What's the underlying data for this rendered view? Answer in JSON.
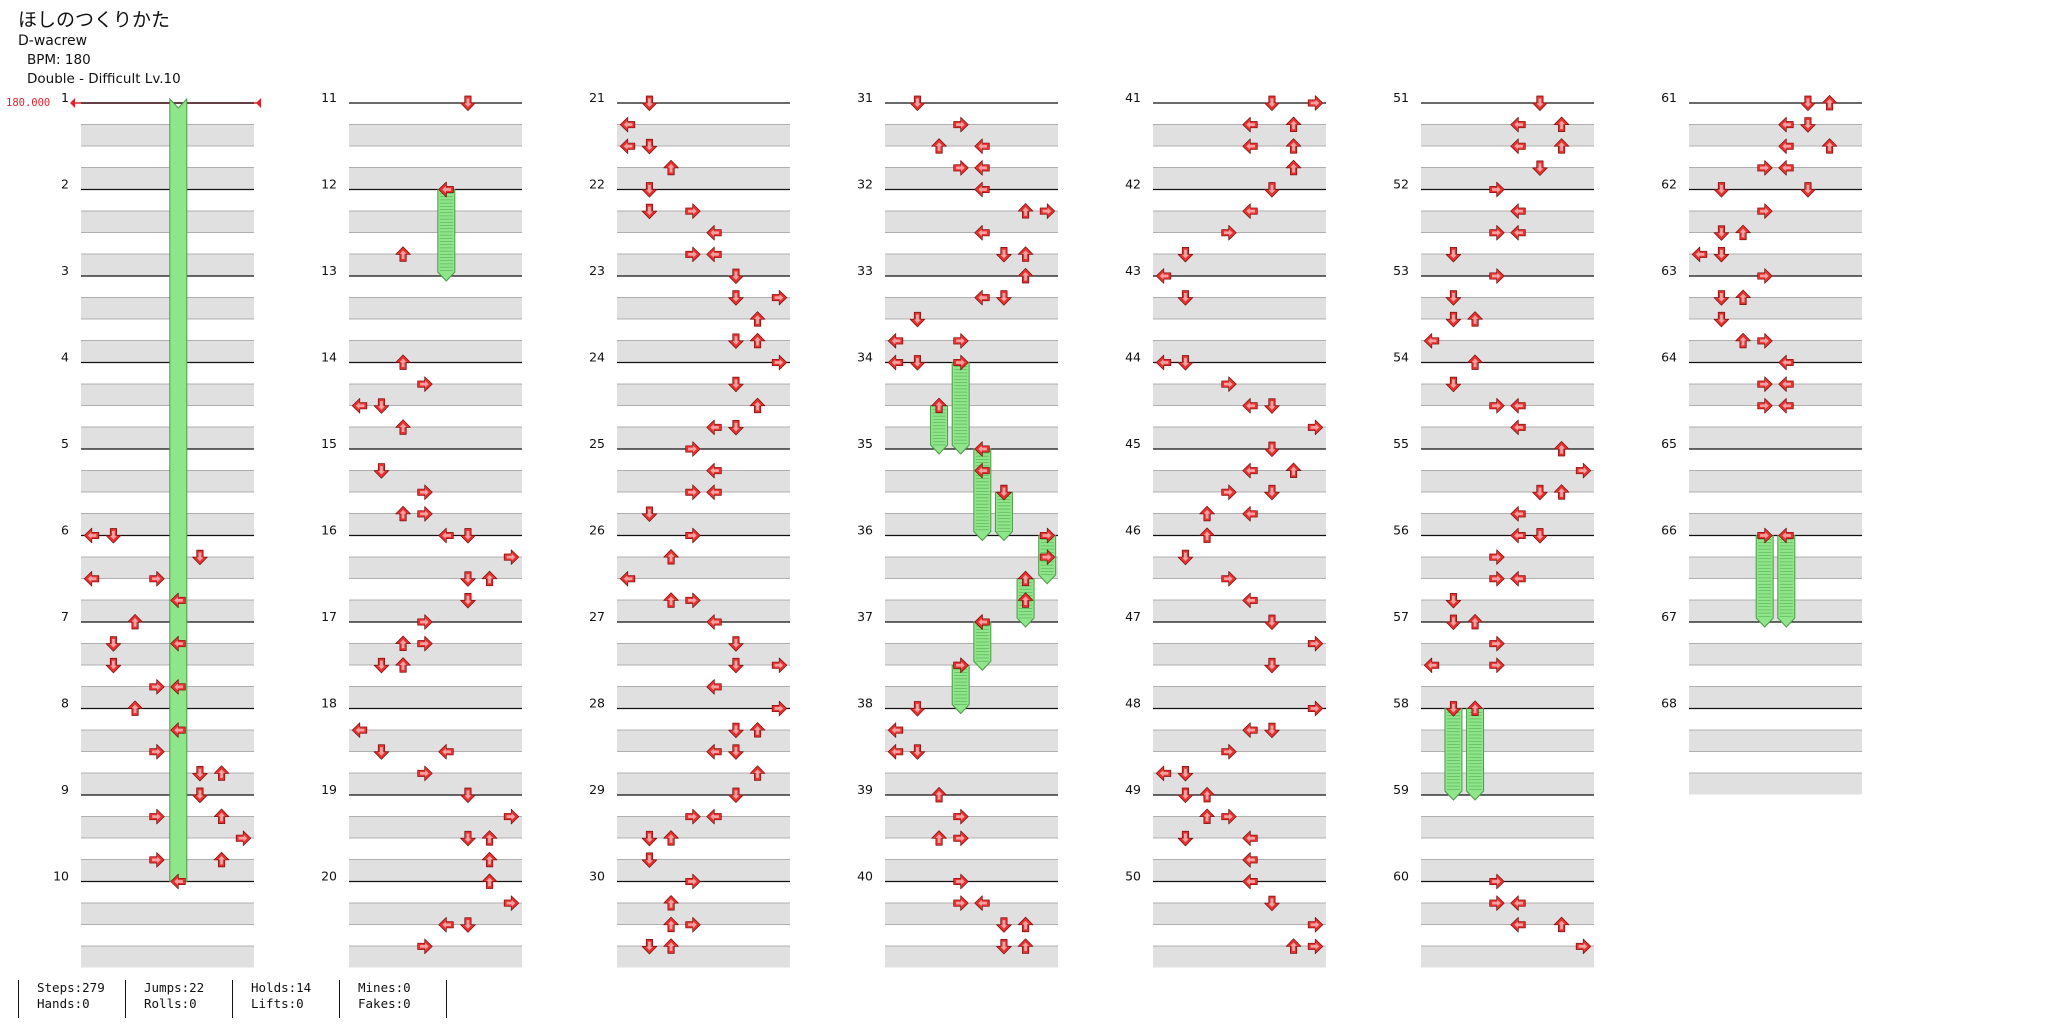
{
  "song": {
    "title": "ほしのつくりかた",
    "artist": "D-wacrew",
    "bpm_text": "BPM: 180",
    "difficulty_text": "Double - Difficult Lv.10"
  },
  "bpm_marker": {
    "value": "180.000",
    "color": "#e0242d"
  },
  "colors": {
    "quarter": "#e8302f",
    "eighth": "#2a4fe0",
    "hold": "#8fe68a",
    "row_band": "#e0e0e0"
  },
  "measures": [
    "1",
    "2",
    "3",
    "4",
    "5",
    "6",
    "7",
    "8",
    "9",
    "10",
    "11",
    "12",
    "13",
    "14",
    "15",
    "16",
    "17",
    "18",
    "19",
    "20",
    "21",
    "22",
    "23",
    "24",
    "25",
    "26",
    "27",
    "28",
    "29",
    "30",
    "31",
    "32",
    "33",
    "34",
    "35",
    "36",
    "37",
    "38",
    "39",
    "40",
    "41",
    "42",
    "43",
    "44",
    "45",
    "46",
    "47",
    "48",
    "49",
    "50",
    "51",
    "52",
    "53",
    "54",
    "55",
    "56",
    "57",
    "58",
    "59",
    "60",
    "61",
    "62",
    "63",
    "64",
    "65",
    "66",
    "67",
    "68"
  ],
  "notes": [
    [
      1,
      0.75,
      6,
      4
    ],
    [
      1,
      0.0,
      6,
      0
    ],
    [
      1,
      0.0,
      6,
      1
    ],
    [
      1,
      0.25,
      6,
      5
    ],
    [
      1,
      0.5,
      6,
      0
    ],
    [
      1,
      0.5,
      6,
      3
    ],
    [
      1,
      0.0,
      7,
      2
    ],
    [
      1,
      0.25,
      7,
      1
    ],
    [
      1,
      0.5,
      7,
      1
    ],
    [
      1,
      0.75,
      7,
      3
    ],
    [
      1,
      0.25,
      7,
      4
    ],
    [
      1,
      0.75,
      7,
      4
    ],
    [
      1,
      0.25,
      8,
      4
    ],
    [
      1,
      0.5,
      8,
      3
    ],
    [
      1,
      0.75,
      8,
      5
    ],
    [
      1,
      0.75,
      8,
      6
    ],
    [
      1,
      0.0,
      8,
      2
    ],
    [
      1,
      0.0,
      9,
      5
    ],
    [
      1,
      0.25,
      9,
      6
    ],
    [
      1,
      0.5,
      9,
      7
    ],
    [
      1,
      0.25,
      9,
      3
    ],
    [
      1,
      0.75,
      9,
      6
    ],
    [
      1,
      0.75,
      9,
      3
    ],
    [
      1,
      0.0,
      9,
      5
    ],
    [
      2,
      0.0,
      11,
      5
    ],
    [
      2,
      0.0,
      12,
      4
    ],
    [
      2,
      0.75,
      12,
      2
    ],
    [
      2,
      0.0,
      14,
      2
    ],
    [
      2,
      0.5,
      14,
      0
    ],
    [
      2,
      0.25,
      14,
      3
    ],
    [
      2,
      0.5,
      14,
      1
    ],
    [
      2,
      0.75,
      14,
      2
    ],
    [
      2,
      0.25,
      15,
      1
    ],
    [
      2,
      0.5,
      15,
      3
    ],
    [
      2,
      0.75,
      15,
      2
    ],
    [
      2,
      0.75,
      15,
      3
    ],
    [
      2,
      0.0,
      16,
      5
    ],
    [
      2,
      0.25,
      16,
      7
    ],
    [
      2,
      0.5,
      16,
      6
    ],
    [
      2,
      0.5,
      16,
      5
    ],
    [
      2,
      0.0,
      16,
      4
    ],
    [
      2,
      0.75,
      16,
      5
    ],
    [
      2,
      0.0,
      17,
      3
    ],
    [
      2,
      0.25,
      17,
      2
    ],
    [
      2,
      0.25,
      17,
      3
    ],
    [
      2,
      0.5,
      17,
      1
    ],
    [
      2,
      0.5,
      17,
      2
    ],
    [
      2,
      0.25,
      18,
      0
    ],
    [
      2,
      0.5,
      18,
      1
    ],
    [
      2,
      0.75,
      18,
      3
    ],
    [
      2,
      0.5,
      18,
      4
    ],
    [
      2,
      0.0,
      19,
      5
    ],
    [
      2,
      0.25,
      19,
      7
    ],
    [
      2,
      0.5,
      19,
      5
    ],
    [
      2,
      0.5,
      19,
      6
    ],
    [
      2,
      0.75,
      19,
      6
    ],
    [
      2,
      0.0,
      20,
      6
    ],
    [
      2,
      0.25,
      20,
      7
    ],
    [
      2,
      0.5,
      20,
      5
    ],
    [
      2,
      0.5,
      20,
      4
    ],
    [
      2,
      0.75,
      20,
      3
    ],
    [
      3,
      0.0,
      21,
      1
    ],
    [
      3,
      0.25,
      21,
      0
    ],
    [
      3,
      0.5,
      21,
      1
    ],
    [
      3,
      0.5,
      21,
      0
    ],
    [
      3,
      0.75,
      21,
      2
    ],
    [
      3,
      0.0,
      22,
      1
    ],
    [
      3,
      0.25,
      22,
      1
    ],
    [
      3,
      0.25,
      22,
      3
    ],
    [
      3,
      0.5,
      22,
      4
    ],
    [
      3,
      0.75,
      22,
      3
    ],
    [
      3,
      0.75,
      22,
      4
    ],
    [
      3,
      0.0,
      23,
      5
    ],
    [
      3,
      0.25,
      23,
      5
    ],
    [
      3,
      0.25,
      23,
      7
    ],
    [
      3,
      0.5,
      23,
      6
    ],
    [
      3,
      0.75,
      23,
      5
    ],
    [
      3,
      0.75,
      23,
      6
    ],
    [
      3,
      0.0,
      24,
      7
    ],
    [
      3,
      0.25,
      24,
      5
    ],
    [
      3,
      0.5,
      24,
      6
    ],
    [
      3,
      0.75,
      24,
      4
    ],
    [
      3,
      0.75,
      24,
      5
    ],
    [
      3,
      0.0,
      25,
      3
    ],
    [
      3,
      0.25,
      25,
      4
    ],
    [
      3,
      0.5,
      25,
      3
    ],
    [
      3,
      0.5,
      25,
      4
    ],
    [
      3,
      0.75,
      25,
      1
    ],
    [
      3,
      0.0,
      26,
      3
    ],
    [
      3,
      0.25,
      26,
      2
    ],
    [
      3,
      0.5,
      26,
      0
    ],
    [
      3,
      0.75,
      26,
      2
    ],
    [
      3,
      0.75,
      26,
      3
    ],
    [
      3,
      0.0,
      27,
      4
    ],
    [
      3,
      0.25,
      27,
      5
    ],
    [
      3,
      0.5,
      27,
      7
    ],
    [
      3,
      0.5,
      27,
      5
    ],
    [
      3,
      0.75,
      27,
      4
    ],
    [
      3,
      0.0,
      28,
      7
    ],
    [
      3,
      0.25,
      28,
      5
    ],
    [
      3,
      0.25,
      28,
      6
    ],
    [
      3,
      0.5,
      28,
      4
    ],
    [
      3,
      0.5,
      28,
      5
    ],
    [
      3,
      0.75,
      28,
      6
    ],
    [
      3,
      0.0,
      29,
      5
    ],
    [
      3,
      0.25,
      29,
      3
    ],
    [
      3,
      0.25,
      29,
      4
    ],
    [
      3,
      0.5,
      29,
      1
    ],
    [
      3,
      0.5,
      29,
      2
    ],
    [
      3,
      0.75,
      29,
      1
    ],
    [
      3,
      0.0,
      30,
      3
    ],
    [
      3,
      0.25,
      30,
      2
    ],
    [
      3,
      0.5,
      30,
      2
    ],
    [
      3,
      0.5,
      30,
      3
    ],
    [
      3,
      0.75,
      30,
      1
    ],
    [
      3,
      0.75,
      30,
      2
    ],
    [
      4,
      0.0,
      31,
      1
    ],
    [
      4,
      0.25,
      31,
      3
    ],
    [
      4,
      0.5,
      31,
      2
    ],
    [
      4,
      0.5,
      31,
      4
    ],
    [
      4,
      0.75,
      31,
      3
    ],
    [
      4,
      0.75,
      31,
      4
    ],
    [
      4,
      0.0,
      32,
      4
    ],
    [
      4,
      0.25,
      32,
      6
    ],
    [
      4,
      0.25,
      32,
      7
    ],
    [
      4,
      0.5,
      32,
      4
    ],
    [
      4,
      0.75,
      32,
      5
    ],
    [
      4,
      0.75,
      32,
      6
    ],
    [
      4,
      0.0,
      33,
      6
    ],
    [
      4,
      0.25,
      33,
      5
    ],
    [
      4,
      0.25,
      33,
      4
    ],
    [
      4,
      0.5,
      33,
      1
    ],
    [
      4,
      0.75,
      33,
      3
    ],
    [
      4,
      0.75,
      33,
      0
    ],
    [
      4,
      0.0,
      34,
      1
    ],
    [
      4,
      0.0,
      34,
      0
    ],
    [
      4,
      0.25,
      35,
      4
    ],
    [
      4,
      0.5,
      35,
      5
    ],
    [
      4,
      0.25,
      36,
      7
    ],
    [
      4,
      0.75,
      36,
      6
    ],
    [
      4,
      0.0,
      37,
      4
    ],
    [
      4,
      0.5,
      37,
      3
    ],
    [
      4,
      0.0,
      38,
      1
    ],
    [
      4,
      0.25,
      38,
      0
    ],
    [
      4,
      0.5,
      38,
      0
    ],
    [
      4,
      0.5,
      38,
      1
    ],
    [
      4,
      0.0,
      39,
      2
    ],
    [
      4,
      0.25,
      39,
      3
    ],
    [
      4,
      0.5,
      39,
      2
    ],
    [
      4,
      0.5,
      39,
      3
    ],
    [
      4,
      0.0,
      40,
      3
    ],
    [
      4,
      0.25,
      40,
      3
    ],
    [
      4,
      0.25,
      40,
      4
    ],
    [
      4,
      0.75,
      40,
      5
    ],
    [
      4,
      0.75,
      40,
      6
    ],
    [
      4,
      0.5,
      40,
      6
    ],
    [
      4,
      0.5,
      40,
      5
    ],
    [
      5,
      0.0,
      41,
      5
    ],
    [
      5,
      0.25,
      41,
      4
    ],
    [
      5,
      0.25,
      41,
      6
    ],
    [
      5,
      0.5,
      41,
      4
    ],
    [
      5,
      0.5,
      41,
      6
    ],
    [
      5,
      0.75,
      41,
      6
    ],
    [
      5,
      0.0,
      41,
      7
    ],
    [
      5,
      0.0,
      42,
      5
    ],
    [
      5,
      0.25,
      42,
      4
    ],
    [
      5,
      0.5,
      42,
      3
    ],
    [
      5,
      0.75,
      42,
      1
    ],
    [
      5,
      0.0,
      43,
      0
    ],
    [
      5,
      0.25,
      43,
      1
    ],
    [
      5,
      0.0,
      44,
      0
    ],
    [
      5,
      0.0,
      44,
      1
    ],
    [
      5,
      0.25,
      44,
      3
    ],
    [
      5,
      0.5,
      44,
      4
    ],
    [
      5,
      0.5,
      44,
      5
    ],
    [
      5,
      0.75,
      44,
      7
    ],
    [
      5,
      0.0,
      45,
      5
    ],
    [
      5,
      0.25,
      45,
      4
    ],
    [
      5,
      0.25,
      45,
      6
    ],
    [
      5,
      0.5,
      45,
      5
    ],
    [
      5,
      0.5,
      45,
      3
    ],
    [
      5,
      0.75,
      45,
      2
    ],
    [
      5,
      0.75,
      45,
      4
    ],
    [
      5,
      0.0,
      46,
      2
    ],
    [
      5,
      0.25,
      46,
      1
    ],
    [
      5,
      0.5,
      46,
      3
    ],
    [
      5,
      0.75,
      46,
      4
    ],
    [
      5,
      0.0,
      47,
      5
    ],
    [
      5,
      0.25,
      47,
      7
    ],
    [
      5,
      0.5,
      47,
      5
    ],
    [
      5,
      0.0,
      48,
      7
    ],
    [
      5,
      0.25,
      48,
      5
    ],
    [
      5,
      0.25,
      48,
      4
    ],
    [
      5,
      0.5,
      48,
      3
    ],
    [
      5,
      0.75,
      48,
      0
    ],
    [
      5,
      0.75,
      48,
      1
    ],
    [
      5,
      0.0,
      49,
      1
    ],
    [
      5,
      0.0,
      49,
      2
    ],
    [
      5,
      0.25,
      49,
      3
    ],
    [
      5,
      0.5,
      49,
      1
    ],
    [
      5,
      0.25,
      49,
      2
    ],
    [
      5,
      0.5,
      49,
      4
    ],
    [
      5,
      0.75,
      49,
      4
    ],
    [
      5,
      0.0,
      50,
      4
    ],
    [
      5,
      0.25,
      50,
      5
    ],
    [
      5,
      0.5,
      50,
      7
    ],
    [
      5,
      0.75,
      50,
      6
    ],
    [
      5,
      0.75,
      50,
      7
    ],
    [
      6,
      0.0,
      51,
      5
    ],
    [
      6,
      0.25,
      51,
      4
    ],
    [
      6,
      0.25,
      51,
      6
    ],
    [
      6,
      0.5,
      51,
      4
    ],
    [
      6,
      0.5,
      51,
      6
    ],
    [
      6,
      0.75,
      51,
      5
    ],
    [
      6,
      0.0,
      52,
      3
    ],
    [
      6,
      0.25,
      52,
      4
    ],
    [
      6,
      0.5,
      52,
      3
    ],
    [
      6,
      0.5,
      52,
      4
    ],
    [
      6,
      0.75,
      52,
      1
    ],
    [
      6,
      0.0,
      53,
      3
    ],
    [
      6,
      0.25,
      53,
      1
    ],
    [
      6,
      0.5,
      53,
      1
    ],
    [
      6,
      0.5,
      53,
      2
    ],
    [
      6,
      0.75,
      53,
      0
    ],
    [
      6,
      0.0,
      54,
      2
    ],
    [
      6,
      0.25,
      54,
      1
    ],
    [
      6,
      0.5,
      54,
      3
    ],
    [
      6,
      0.5,
      54,
      4
    ],
    [
      6,
      0.75,
      54,
      4
    ],
    [
      6,
      0.0,
      55,
      6
    ],
    [
      6,
      0.25,
      55,
      7
    ],
    [
      6,
      0.5,
      55,
      5
    ],
    [
      6,
      0.5,
      55,
      6
    ],
    [
      6,
      0.75,
      55,
      4
    ],
    [
      6,
      0.0,
      56,
      4
    ],
    [
      6,
      0.0,
      56,
      5
    ],
    [
      6,
      0.25,
      56,
      3
    ],
    [
      6,
      0.5,
      56,
      3
    ],
    [
      6,
      0.5,
      56,
      4
    ],
    [
      6,
      0.75,
      56,
      1
    ],
    [
      6,
      0.0,
      57,
      1
    ],
    [
      6,
      0.0,
      57,
      2
    ],
    [
      6,
      0.25,
      57,
      3
    ],
    [
      6,
      0.5,
      57,
      0
    ],
    [
      6,
      0.5,
      57,
      3
    ],
    [
      6,
      0.0,
      60,
      3
    ],
    [
      6,
      0.25,
      60,
      4
    ],
    [
      6,
      0.25,
      60,
      3
    ],
    [
      6,
      0.5,
      60,
      4
    ],
    [
      6,
      0.5,
      60,
      6
    ],
    [
      6,
      0.75,
      60,
      7
    ],
    [
      7,
      0.0,
      61,
      5
    ],
    [
      7,
      0.0,
      61,
      6
    ],
    [
      7,
      0.25,
      61,
      4
    ],
    [
      7,
      0.25,
      61,
      5
    ],
    [
      7,
      0.5,
      61,
      4
    ],
    [
      7,
      0.5,
      61,
      6
    ],
    [
      7,
      0.75,
      61,
      3
    ],
    [
      7,
      0.75,
      61,
      4
    ],
    [
      7,
      0.0,
      62,
      5
    ],
    [
      7,
      0.0,
      62,
      1
    ],
    [
      7,
      0.25,
      62,
      3
    ],
    [
      7,
      0.5,
      62,
      2
    ],
    [
      7,
      0.5,
      62,
      1
    ],
    [
      7,
      0.75,
      62,
      0
    ],
    [
      7,
      0.75,
      62,
      1
    ],
    [
      7,
      0.0,
      63,
      3
    ],
    [
      7,
      0.25,
      63,
      1
    ],
    [
      7,
      0.25,
      63,
      2
    ],
    [
      7,
      0.5,
      63,
      1
    ],
    [
      7,
      0.75,
      63,
      2
    ],
    [
      7,
      0.75,
      63,
      3
    ],
    [
      7,
      0.0,
      64,
      4
    ],
    [
      7,
      0.25,
      64,
      3
    ],
    [
      7,
      0.25,
      64,
      4
    ],
    [
      7,
      0.5,
      64,
      4
    ],
    [
      7,
      0.5,
      64,
      3
    ]
  ],
  "holds": [
    [
      1,
      10,
      0.0,
      11,
      0.0,
      4
    ],
    [
      2,
      12,
      0.0,
      13,
      0.0,
      4
    ],
    [
      4,
      34,
      0.0,
      35,
      0.0,
      3
    ],
    [
      4,
      34,
      0.5,
      35,
      0.0,
      2
    ],
    [
      4,
      35,
      0.0,
      36,
      0.0,
      4
    ],
    [
      4,
      35,
      0.5,
      36,
      0.0,
      5
    ],
    [
      4,
      36,
      0.0,
      36,
      0.5,
      7
    ],
    [
      4,
      36,
      0.5,
      37,
      0.0,
      6
    ],
    [
      4,
      37,
      0.0,
      37,
      0.5,
      4
    ],
    [
      4,
      37,
      0.5,
      38,
      0.0,
      3
    ],
    [
      6,
      58,
      0.0,
      59,
      0.0,
      1
    ],
    [
      6,
      58,
      0.0,
      59,
      0.0,
      2
    ],
    [
      7,
      66,
      0.0,
      67,
      0.0,
      3
    ],
    [
      7,
      66,
      0.0,
      67,
      0.0,
      4
    ]
  ],
  "stats": [
    [
      "Steps:279",
      "Hands:0"
    ],
    [
      "Jumps:22",
      "Rolls:0"
    ],
    [
      "Holds:14",
      "Lifts:0"
    ],
    [
      "Mines:0",
      "Fakes:0"
    ]
  ]
}
